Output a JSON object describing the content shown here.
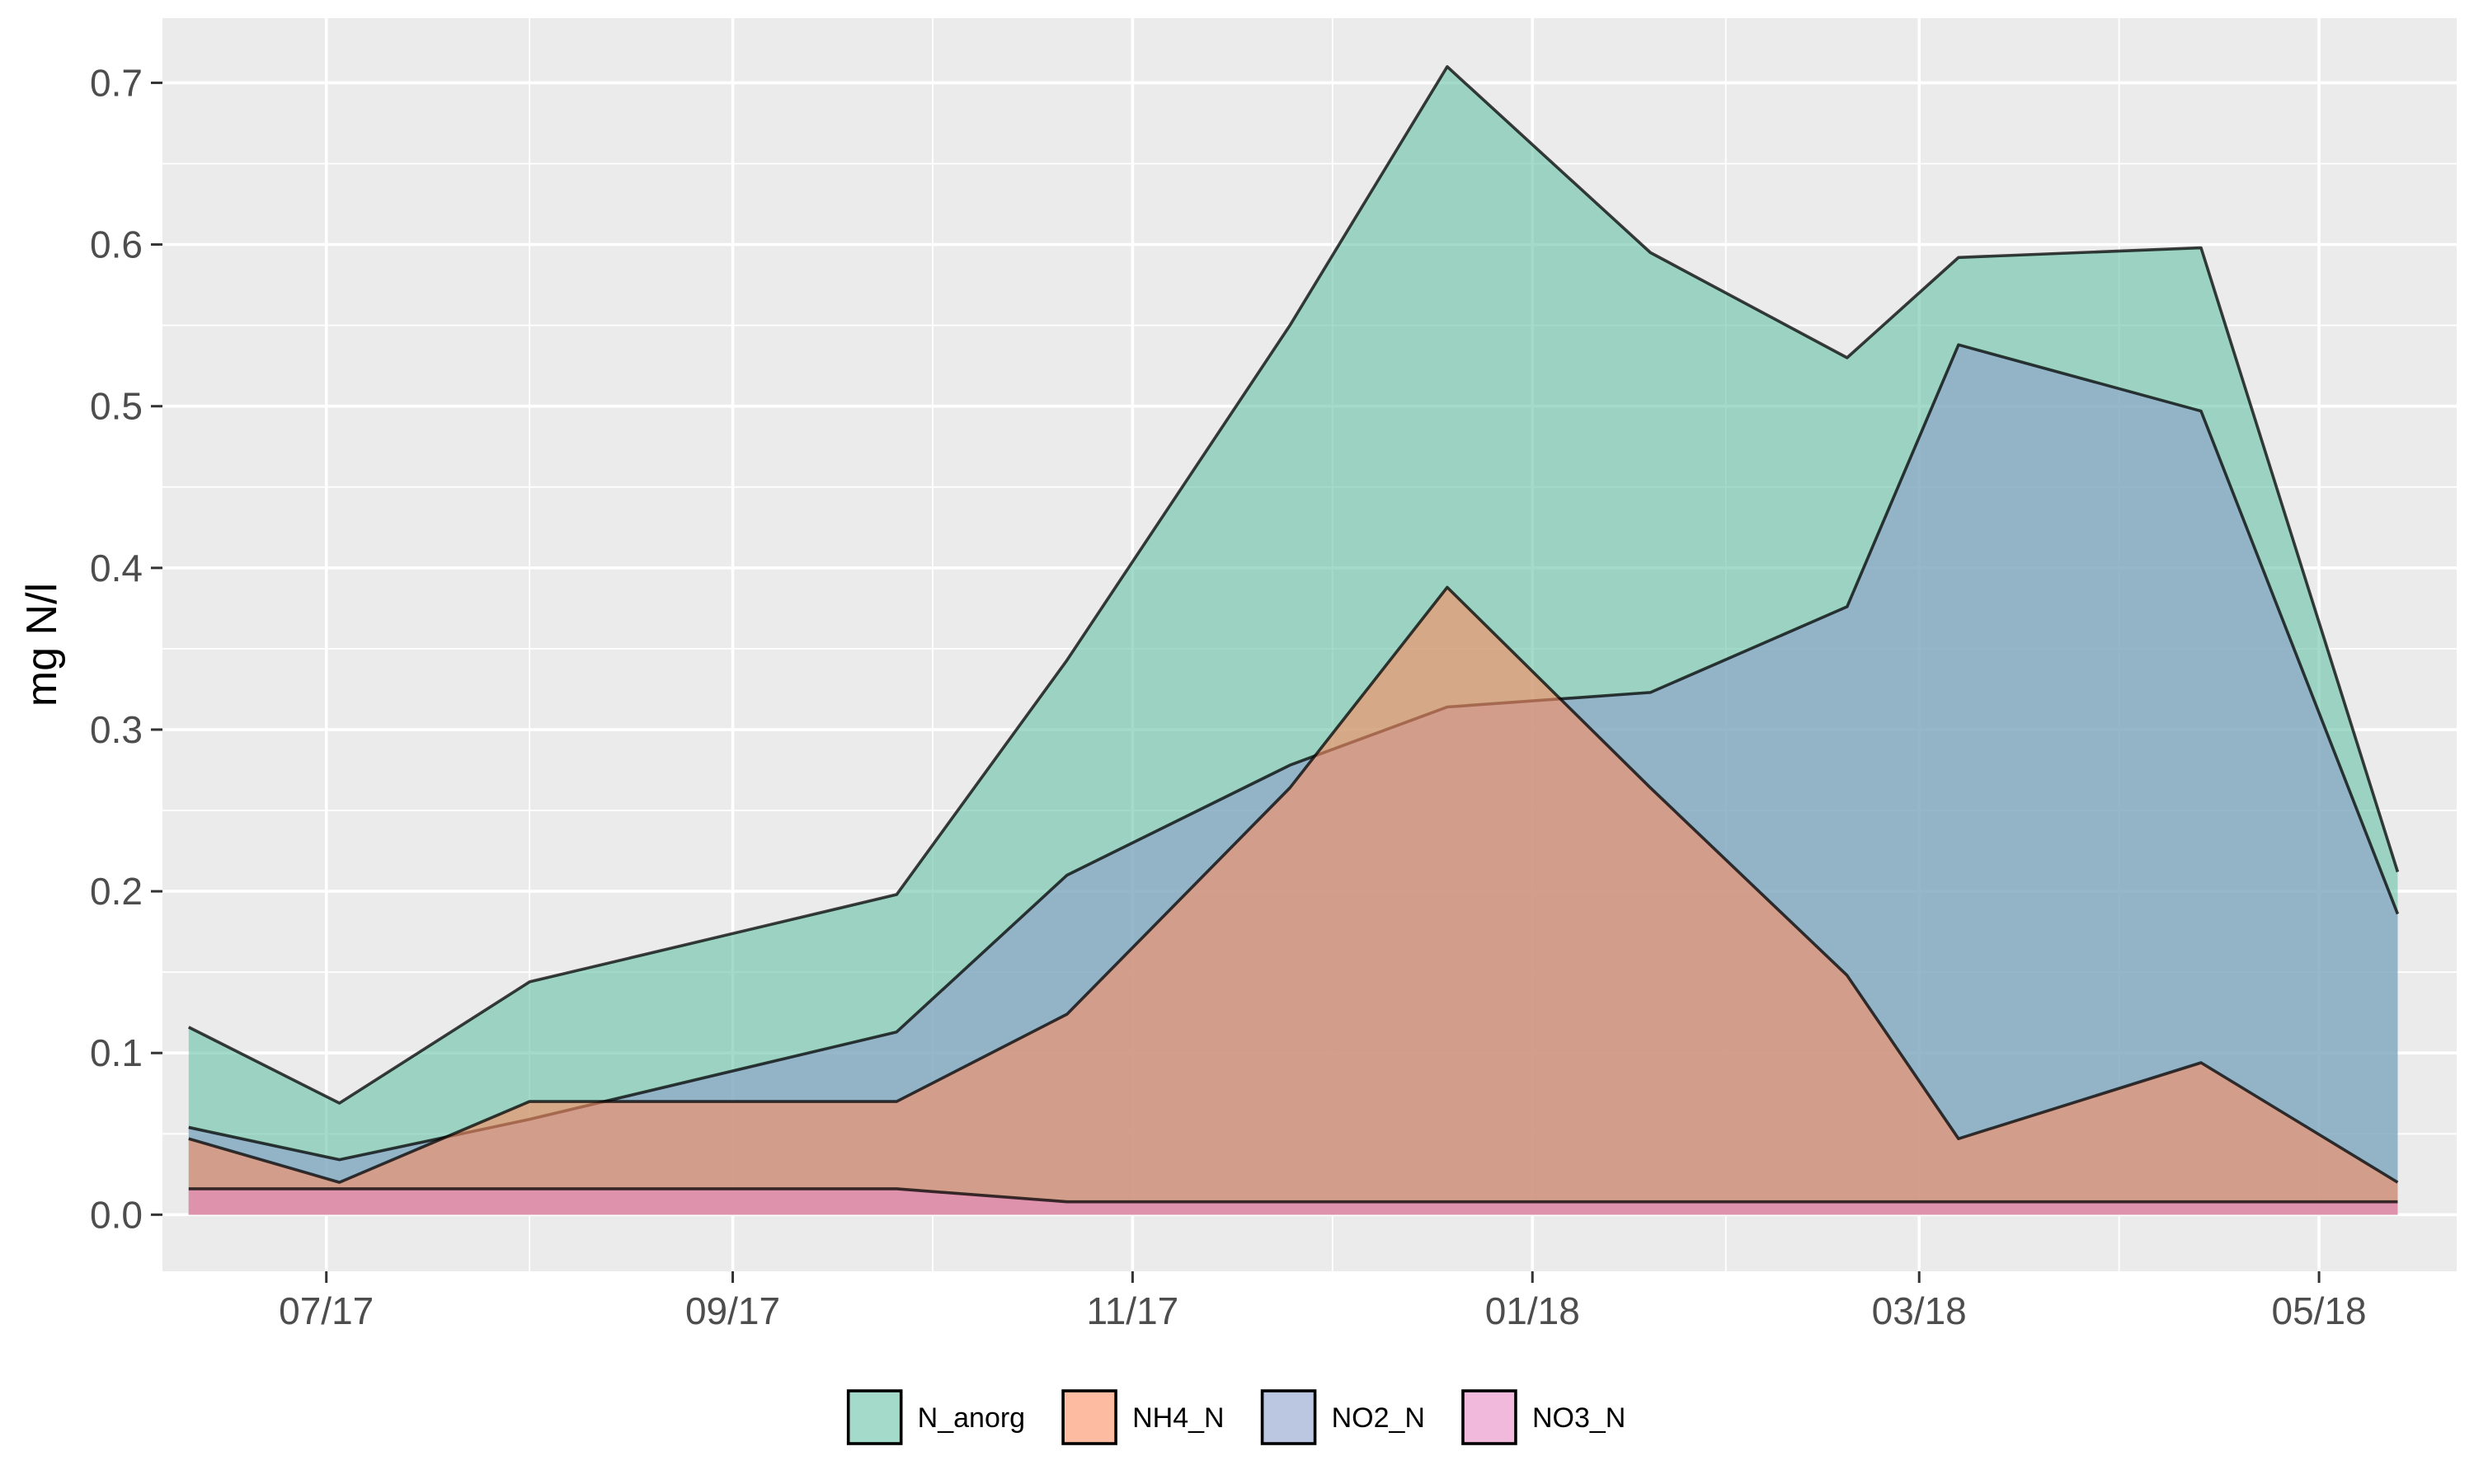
{
  "chart_data": {
    "type": "area",
    "title": "",
    "xlabel": "",
    "ylabel": "mg N/l",
    "x": [
      "2017-06-10",
      "2017-07-03",
      "2017-08-01",
      "2017-09-26",
      "2017-10-22",
      "2017-11-25",
      "2017-12-19",
      "2018-01-19",
      "2018-02-18",
      "2018-03-07",
      "2018-04-13",
      "2018-05-13"
    ],
    "x_ticks": [
      "2017-07-01",
      "2017-09-01",
      "2017-11-01",
      "2018-01-01",
      "2018-03-01",
      "2018-05-01"
    ],
    "x_tick_labels": [
      "07/17",
      "09/17",
      "11/17",
      "01/18",
      "03/18",
      "05/18"
    ],
    "xlim": [
      "2017-06-06",
      "2018-05-22"
    ],
    "ylim": [
      -0.035,
      0.74
    ],
    "y_ticks": [
      0.0,
      0.1,
      0.2,
      0.3,
      0.4,
      0.5,
      0.6,
      0.7
    ],
    "y_tick_labels": [
      "0.0",
      "0.1",
      "0.2",
      "0.3",
      "0.4",
      "0.5",
      "0.6",
      "0.7"
    ],
    "legend_position": "bottom",
    "grid": true,
    "series": [
      {
        "name": "N_anorg",
        "color": "#66c2a5",
        "x": [
          "2017-06-10",
          "2017-07-03",
          "2017-08-01",
          "2017-09-26",
          "2017-10-22",
          "2017-11-25",
          "2017-12-19",
          "2018-01-19",
          "2018-02-18",
          "2018-03-07",
          "2018-04-13",
          "2018-05-13"
        ],
        "values": [
          0.116,
          0.069,
          0.144,
          0.198,
          0.343,
          0.55,
          0.71,
          0.595,
          0.53,
          0.592,
          0.598,
          0.212
        ]
      },
      {
        "name": "NO2_N",
        "color": "#8da0cb",
        "x": [
          "2017-06-10",
          "2017-07-03",
          "2017-08-01",
          "2017-09-26",
          "2017-10-22",
          "2017-11-25",
          "2017-12-19",
          "2018-01-19",
          "2018-02-18",
          "2018-03-07",
          "2018-04-13",
          "2018-05-13"
        ],
        "values": [
          0.054,
          0.034,
          0.059,
          0.113,
          0.21,
          0.278,
          0.314,
          0.323,
          0.376,
          0.538,
          0.497,
          0.186
        ]
      },
      {
        "name": "NH4_N",
        "color": "#fc8d62",
        "x": [
          "2017-06-10",
          "2017-07-03",
          "2017-08-01",
          "2017-09-26",
          "2017-10-22",
          "2017-11-25",
          "2017-12-19",
          "2018-01-19",
          "2018-02-18",
          "2018-03-07",
          "2018-04-13",
          "2018-05-13"
        ],
        "values": [
          0.047,
          0.02,
          0.07,
          0.07,
          0.124,
          0.264,
          0.388,
          0.264,
          0.148,
          0.047,
          0.094,
          0.02
        ]
      },
      {
        "name": "NO3_N",
        "color": "#e78ac3",
        "x": [
          "2017-06-10",
          "2017-07-03",
          "2017-08-01",
          "2017-09-26",
          "2017-10-22",
          "2017-11-25",
          "2017-12-19",
          "2018-01-19",
          "2018-02-18",
          "2018-03-07",
          "2018-04-13",
          "2018-05-13"
        ],
        "values": [
          0.016,
          0.016,
          0.016,
          0.016,
          0.008,
          0.008,
          0.008,
          0.008,
          0.008,
          0.008,
          0.008,
          0.008
        ]
      }
    ],
    "legend": [
      {
        "name": "N_anorg",
        "color": "#66c2a5"
      },
      {
        "name": "NH4_N",
        "color": "#fc8d62"
      },
      {
        "name": "NO2_N",
        "color": "#8da0cb"
      },
      {
        "name": "NO3_N",
        "color": "#e78ac3"
      }
    ]
  }
}
